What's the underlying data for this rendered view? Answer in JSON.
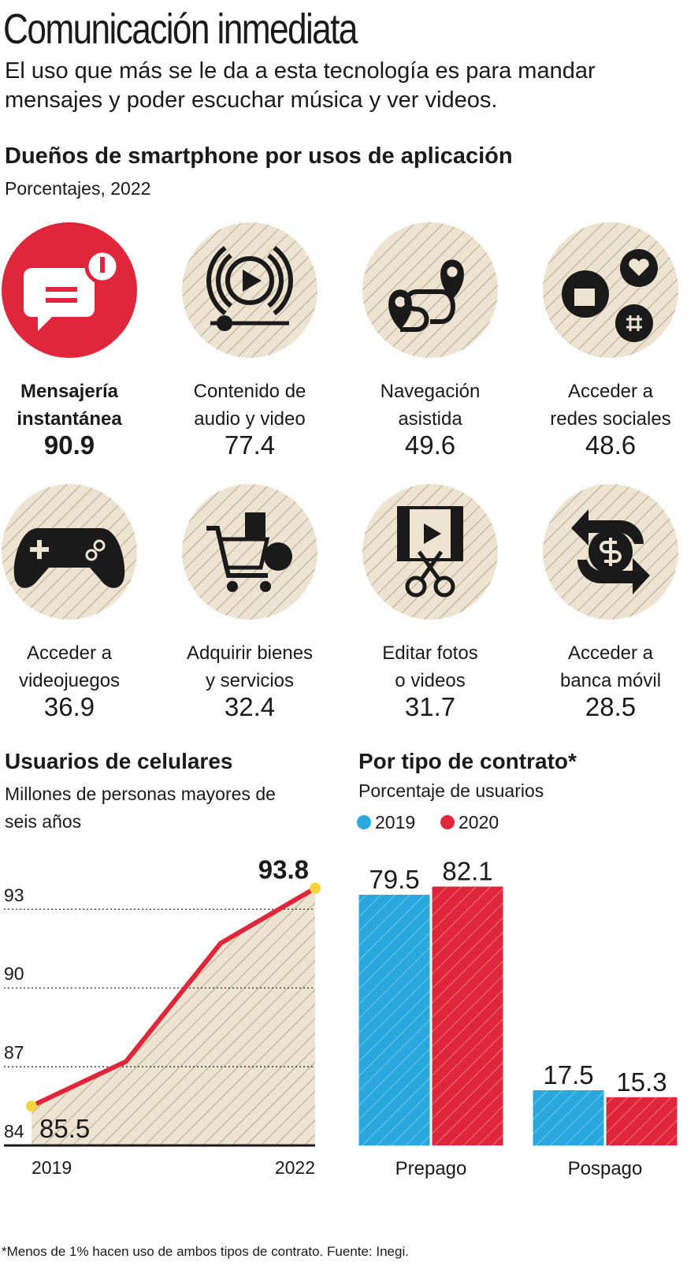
{
  "title": "Comunicación inmediata",
  "subtitle": "El uso que más se le da a esta tecnología es para mandar mensajes y poder escuchar música y ver videos.",
  "section_title": "Dueños de smartphone por usos de aplicación",
  "section_subtitle": "Porcentajes, 2022",
  "highlighted_app": 0,
  "apps": [
    {
      "label_lines": [
        "Mensajería",
        "instantánea"
      ],
      "value": 90.9
    },
    {
      "label_lines": [
        "Contenido de",
        "audio y video"
      ],
      "value": 77.4
    },
    {
      "label_lines": [
        "Navegación",
        "asistida"
      ],
      "value": 49.6
    },
    {
      "label_lines": [
        "Acceder a",
        "redes sociales"
      ],
      "value": 48.6
    },
    {
      "label_lines": [
        "Acceder a",
        "videojuegos"
      ],
      "value": 36.9
    },
    {
      "label_lines": [
        "Adquirir bienes",
        "y servicios"
      ],
      "value": 32.4
    },
    {
      "label_lines": [
        "Editar fotos",
        "o videos"
      ],
      "value": 31.7
    },
    {
      "label_lines": [
        "Acceder a",
        "banca móvil"
      ],
      "value": 28.5
    }
  ],
  "chart_data": [
    {
      "type": "line",
      "title": "Usuarios de celulares",
      "subtitle": "Millones de personas mayores de seis años",
      "x": [
        2019,
        2020,
        2021,
        2022
      ],
      "values": [
        85.5,
        87.2,
        91.7,
        93.8
      ],
      "value_labels": [
        "85.5",
        null,
        null,
        "93.8"
      ],
      "color": "#e0263a",
      "xlim": [
        2019,
        2022
      ],
      "xticks": [
        2019,
        2022
      ],
      "ylim": [
        84,
        94
      ],
      "yticks": [
        84,
        87,
        90,
        93
      ],
      "grid": true
    },
    {
      "type": "bar",
      "title": "Por tipo de contrato*",
      "subtitle": "Porcentaje de usuarios",
      "categories": [
        "Prepago",
        "Pospago"
      ],
      "series": [
        {
          "name": "2019",
          "color": "#29a8de",
          "values": [
            79.5,
            17.5
          ]
        },
        {
          "name": "2020",
          "color": "#e0263a",
          "values": [
            82.1,
            15.3
          ]
        }
      ],
      "ylim": [
        0,
        100
      ]
    }
  ],
  "footnote": "*Menos de 1% hacen uso de ambos tipos de contrato. Fuente: Inegi."
}
